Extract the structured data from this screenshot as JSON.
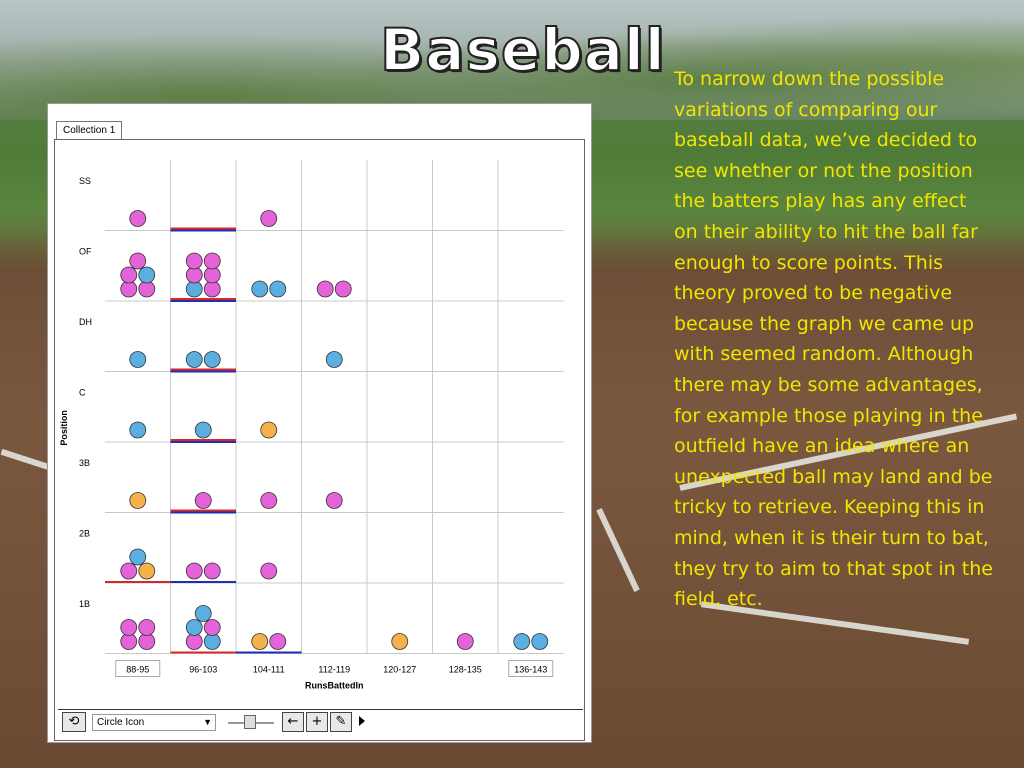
{
  "title": "Baseball",
  "description": "To narrow down the possible variations of comparing our baseball data, we’ve decided to see whether or not the position the batters play has any effect on their ability to hit the ball far enough to score points. This theory proved to be negative because the graph we came up with seemed random. Although there may be some advantages, for example those playing in the outfield have an idea where an unexpected ball may land and be tricky to retrieve. Keeping this in mind, when it is their turn to bat, they try to aim to that spot in the field, etc.",
  "app": {
    "collection_tab": "Collection 1",
    "toolbar": {
      "display_select_value": "Circle Icon",
      "buttons": [
        "rescale-button",
        "back-arrow-button",
        "move-button",
        "pencil-button",
        "play-button"
      ]
    }
  },
  "colors": {
    "pink": "#e463d8",
    "blue": "#5aaee0",
    "orange": "#f6b24a",
    "red_line": "#d62a2a",
    "blue_line": "#1e2fb5"
  },
  "chart_data": {
    "type": "scatter",
    "xlabel": "RunsBattedIn",
    "ylabel": "Position",
    "x_categories": [
      "88-95",
      "96-103",
      "104-111",
      "112-119",
      "120-127",
      "128-135",
      "136-143"
    ],
    "y_categories": [
      "SS",
      "OF",
      "DH",
      "C",
      "3B",
      "2B",
      "1B"
    ],
    "cells": [
      {
        "pos": "SS",
        "bin": "88-95",
        "points": [
          "pink"
        ]
      },
      {
        "pos": "SS",
        "bin": "104-111",
        "points": [
          "pink"
        ]
      },
      {
        "pos": "OF",
        "bin": "88-95",
        "points": [
          "pink",
          "pink",
          "pink",
          "blue",
          "pink"
        ]
      },
      {
        "pos": "OF",
        "bin": "96-103",
        "points": [
          "blue",
          "pink",
          "pink",
          "pink",
          "pink",
          "pink"
        ]
      },
      {
        "pos": "OF",
        "bin": "104-111",
        "points": [
          "blue",
          "blue"
        ]
      },
      {
        "pos": "OF",
        "bin": "112-119",
        "points": [
          "pink",
          "pink"
        ]
      },
      {
        "pos": "DH",
        "bin": "88-95",
        "points": [
          "blue"
        ]
      },
      {
        "pos": "DH",
        "bin": "96-103",
        "points": [
          "blue",
          "blue"
        ]
      },
      {
        "pos": "DH",
        "bin": "112-119",
        "points": [
          "blue"
        ]
      },
      {
        "pos": "C",
        "bin": "88-95",
        "points": [
          "blue"
        ]
      },
      {
        "pos": "C",
        "bin": "96-103",
        "points": [
          "blue"
        ]
      },
      {
        "pos": "C",
        "bin": "104-111",
        "points": [
          "orange"
        ]
      },
      {
        "pos": "3B",
        "bin": "88-95",
        "points": [
          "orange"
        ]
      },
      {
        "pos": "3B",
        "bin": "96-103",
        "points": [
          "pink"
        ]
      },
      {
        "pos": "3B",
        "bin": "104-111",
        "points": [
          "pink"
        ]
      },
      {
        "pos": "3B",
        "bin": "112-119",
        "points": [
          "pink"
        ]
      },
      {
        "pos": "2B",
        "bin": "88-95",
        "points": [
          "pink",
          "orange",
          "blue"
        ]
      },
      {
        "pos": "2B",
        "bin": "96-103",
        "points": [
          "pink",
          "pink"
        ]
      },
      {
        "pos": "2B",
        "bin": "104-111",
        "points": [
          "pink"
        ]
      },
      {
        "pos": "1B",
        "bin": "88-95",
        "points": [
          "pink",
          "pink",
          "pink",
          "pink"
        ]
      },
      {
        "pos": "1B",
        "bin": "96-103",
        "points": [
          "pink",
          "blue",
          "blue",
          "pink",
          "blue"
        ]
      },
      {
        "pos": "1B",
        "bin": "104-111",
        "points": [
          "orange",
          "pink"
        ]
      },
      {
        "pos": "1B",
        "bin": "120-127",
        "points": [
          "orange"
        ]
      },
      {
        "pos": "1B",
        "bin": "128-135",
        "points": [
          "pink"
        ]
      },
      {
        "pos": "1B",
        "bin": "136-143",
        "points": [
          "blue",
          "blue"
        ]
      }
    ],
    "median_lines": [
      {
        "pos": "SS",
        "bin": "96-103",
        "colors": [
          "red",
          "blue"
        ]
      },
      {
        "pos": "OF",
        "bin": "96-103",
        "colors": [
          "red",
          "blue"
        ]
      },
      {
        "pos": "DH",
        "bin": "96-103",
        "colors": [
          "red",
          "blue"
        ]
      },
      {
        "pos": "C",
        "bin": "96-103",
        "colors": [
          "red",
          "blue"
        ]
      },
      {
        "pos": "3B",
        "bin": "96-103",
        "colors": [
          "red",
          "blue"
        ]
      },
      {
        "pos": "2B",
        "bin": "88-95",
        "colors": [
          "red"
        ]
      },
      {
        "pos": "2B",
        "bin": "96-103",
        "colors": [
          "blue"
        ]
      },
      {
        "pos": "1B",
        "bin": "96-103",
        "colors": [
          "red"
        ]
      },
      {
        "pos": "1B",
        "bin": "104-111",
        "colors": [
          "blue"
        ]
      }
    ],
    "boxed_tick_labels": [
      "88-95",
      "136-143"
    ],
    "grid": true
  }
}
